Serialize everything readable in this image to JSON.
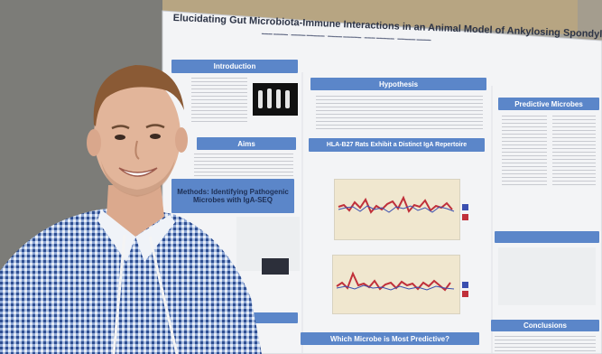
{
  "photo": {
    "subject": "presenter-standing-in-front-of-poster"
  },
  "poster": {
    "title": "Elucidating Gut Microbiota-Immune Interactions in an Animal Model of Ankylosing Spondylitis",
    "sections": {
      "introduction": "Introduction",
      "aims": "Aims",
      "methods": "Methods: Identifying Pathogenic Microbes with IgA-SEQ",
      "hypothesis": "Hypothesis",
      "hla_b27": "HLA-B27 Rats Exhibit a Distinct IgA Repertoire",
      "which_microbe": "Which Microbe is Most Predictive?",
      "predictive_microbes": "Predictive Microbes",
      "conclusions": "Conclusions"
    },
    "colors": {
      "header_blue": "#5b86c9",
      "poster_white": "#f3f4f6",
      "plot_bg": "#f0e7cf",
      "series_red": "#c0303a",
      "series_blue": "#3a4fb0"
    }
  }
}
